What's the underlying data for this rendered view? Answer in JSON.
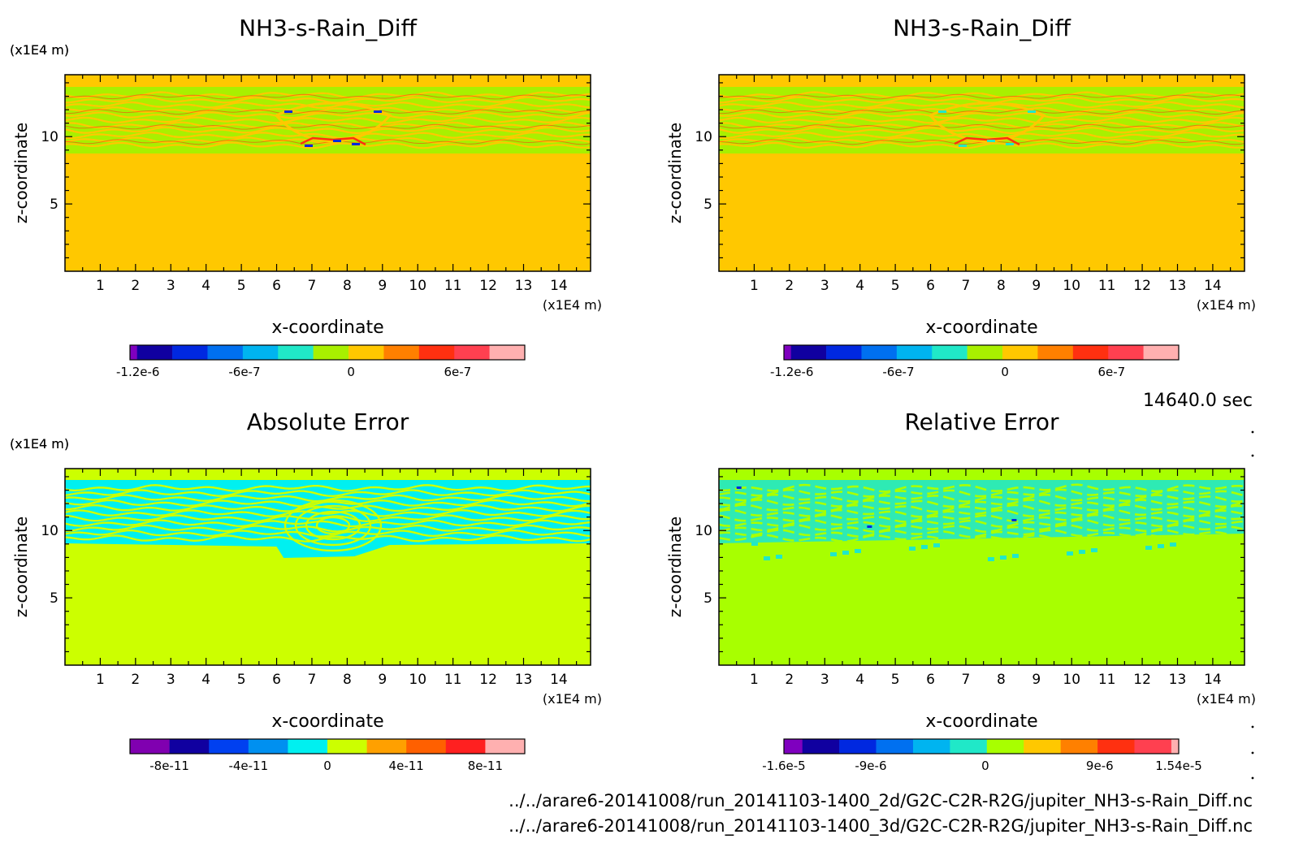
{
  "time_label": "14640.0 sec",
  "file_lines": [
    "../../arare6-20141008/run_20141103-1400_2d/G2C-C2R-R2G/jupiter_NH3-s-Rain_Diff.nc",
    "../../arare6-20141008/run_20141103-1400_3d/G2C-C2R-R2G/jupiter_NH3-s-Rain_Diff.nc"
  ],
  "chart_data": [
    {
      "type": "heatmap",
      "title": "NH3-s-Rain_Diff",
      "xlabel": "x-coordinate",
      "ylabel": "z-coordinate",
      "x_unit": "(x1E4 m)",
      "y_unit": "(x1E4 m)",
      "xlim": [
        0,
        14.9
      ],
      "ylim": [
        0,
        14.6
      ],
      "xticks": [
        "1",
        "2",
        "3",
        "4",
        "5",
        "6",
        "7",
        "8",
        "9",
        "10",
        "11",
        "12",
        "13",
        "14"
      ],
      "yticks": [
        "5",
        "10"
      ],
      "pattern": "nh3",
      "colorbar": {
        "colors": [
          "#7f00bf",
          "#1000a0",
          "#0028e0",
          "#0070f0",
          "#00b4f0",
          "#20e8c8",
          "#a8f000",
          "#ffc800",
          "#ff8000",
          "#ff3010",
          "#ff4050",
          "#ffb0b0"
        ],
        "weights": [
          0.2,
          1,
          1,
          1,
          1,
          1,
          1,
          1,
          1,
          1,
          1,
          1
        ],
        "tick_labels": [
          "-1.2e-6",
          "-6e-7",
          "0",
          "6e-7"
        ],
        "tick_positions": [
          0.02,
          0.29,
          0.56,
          0.83
        ]
      }
    },
    {
      "type": "heatmap",
      "title": "NH3-s-Rain_Diff",
      "xlabel": "x-coordinate",
      "ylabel": "z-coordinate",
      "x_unit": "(x1E4 m)",
      "y_unit": "(x1E4 m)",
      "xlim": [
        0,
        14.9
      ],
      "ylim": [
        0,
        14.6
      ],
      "xticks": [
        "1",
        "2",
        "3",
        "4",
        "5",
        "6",
        "7",
        "8",
        "9",
        "10",
        "11",
        "12",
        "13",
        "14"
      ],
      "yticks": [
        "5",
        "10"
      ],
      "pattern": "nh3",
      "colorbar": {
        "colors": [
          "#7f00bf",
          "#1000a0",
          "#0028e0",
          "#0070f0",
          "#00b4f0",
          "#20e8c8",
          "#a8f000",
          "#ffc800",
          "#ff8000",
          "#ff3010",
          "#ff4050",
          "#ffb0b0"
        ],
        "weights": [
          0.2,
          1,
          1,
          1,
          1,
          1,
          1,
          1,
          1,
          1,
          1,
          1
        ],
        "tick_labels": [
          "-1.2e-6",
          "-6e-7",
          "0",
          "6e-7"
        ],
        "tick_positions": [
          0.02,
          0.29,
          0.56,
          0.83
        ]
      }
    },
    {
      "type": "heatmap",
      "title": "Absolute Error",
      "xlabel": "x-coordinate",
      "ylabel": "z-coordinate",
      "x_unit": "(x1E4 m)",
      "y_unit": "(x1E4 m)",
      "xlim": [
        0,
        14.9
      ],
      "ylim": [
        0,
        14.6
      ],
      "xticks": [
        "1",
        "2",
        "3",
        "4",
        "5",
        "6",
        "7",
        "8",
        "9",
        "10",
        "11",
        "12",
        "13",
        "14"
      ],
      "yticks": [
        "5",
        "10"
      ],
      "pattern": "abs",
      "colorbar": {
        "colors": [
          "#8000b0",
          "#1000a0",
          "#0040f0",
          "#0090f0",
          "#00f0f0",
          "#ccff00",
          "#ffa000",
          "#ff6000",
          "#ff2020",
          "#ffb0b0"
        ],
        "weights": [
          1,
          1,
          1,
          1,
          1,
          1,
          1,
          1,
          1,
          1
        ],
        "tick_labels": [
          "-8e-11",
          "-4e-11",
          "0",
          "4e-11",
          "8e-11"
        ],
        "tick_positions": [
          0.1,
          0.3,
          0.5,
          0.7,
          0.9
        ]
      }
    },
    {
      "type": "heatmap",
      "title": "Relative Error",
      "xlabel": "x-coordinate",
      "ylabel": "z-coordinate",
      "x_unit": "(x1E4 m)",
      "y_unit": "(x1E4 m)",
      "xlim": [
        0,
        14.9
      ],
      "ylim": [
        0,
        14.6
      ],
      "xticks": [
        "1",
        "2",
        "3",
        "4",
        "5",
        "6",
        "7",
        "8",
        "9",
        "10",
        "11",
        "12",
        "13",
        "14"
      ],
      "yticks": [
        "5",
        "10"
      ],
      "pattern": "rel",
      "colorbar": {
        "colors": [
          "#7f00bf",
          "#1000a0",
          "#0028e0",
          "#0070f0",
          "#00b4f0",
          "#20e8c8",
          "#a8ff00",
          "#ffc800",
          "#ff8000",
          "#ff3010",
          "#ff4050",
          "#ffb0b0"
        ],
        "weights": [
          0.5,
          1,
          1,
          1,
          1,
          1,
          1,
          1,
          1,
          1,
          1,
          0.2
        ],
        "tick_labels": [
          "-1.6e-5",
          "-9e-6",
          "0",
          "9e-6",
          "1.54e-5"
        ],
        "tick_positions": [
          0.0,
          0.22,
          0.51,
          0.8,
          1.0
        ]
      }
    }
  ]
}
